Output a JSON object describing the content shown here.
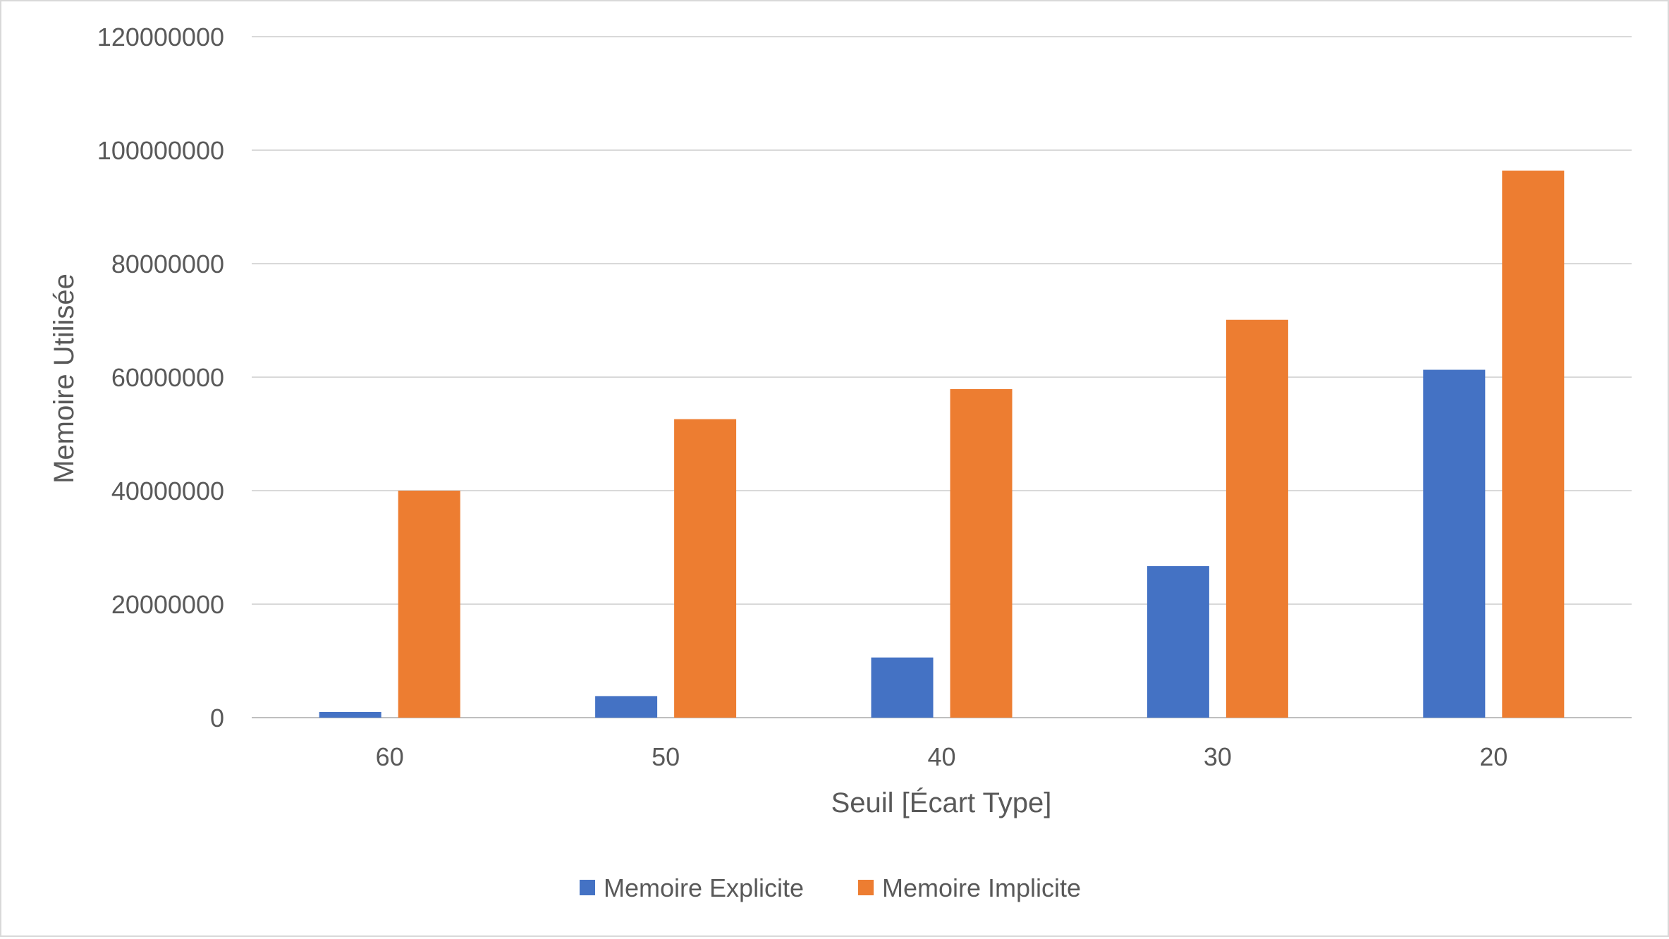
{
  "chart_data": {
    "type": "bar",
    "title": "",
    "xlabel": "Seuil [Écart Type]",
    "ylabel": "Memoire Utilisée",
    "categories": [
      "60",
      "50",
      "40",
      "30",
      "20"
    ],
    "series": [
      {
        "name": "Memoire Explicite",
        "color": "#4472C4",
        "values": [
          1000000,
          3800000,
          10600000,
          26700000,
          61300000
        ]
      },
      {
        "name": "Memoire Implicite",
        "color": "#ED7D31",
        "values": [
          40000000,
          52600000,
          57900000,
          70100000,
          96400000
        ]
      }
    ],
    "ylim": [
      0,
      120000000
    ],
    "yticks": [
      "0",
      "20000000",
      "40000000",
      "60000000",
      "80000000",
      "100000000",
      "120000000"
    ],
    "grid": true,
    "legend_position": "bottom"
  }
}
